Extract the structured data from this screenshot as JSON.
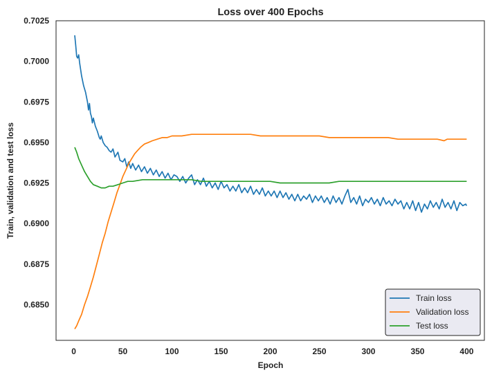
{
  "chart_data": {
    "type": "line",
    "title": "Loss over 400 Epochs",
    "xlabel": "Epoch",
    "ylabel": "Train, validation and test loss",
    "xlim": [
      -18,
      418
    ],
    "ylim": [
      0.6828,
      0.7025
    ],
    "xticks": [
      0,
      50,
      100,
      150,
      200,
      250,
      300,
      350,
      400
    ],
    "yticks": [
      "0.6850",
      "0.6875",
      "0.6900",
      "0.6925",
      "0.6950",
      "0.6975",
      "0.7000",
      "0.7025"
    ],
    "grid": false,
    "legend_position": "lower-right",
    "series": [
      {
        "name": "Train loss",
        "color": "#1f77b4",
        "points": [
          [
            1,
            0.7016
          ],
          [
            2,
            0.701
          ],
          [
            3,
            0.7003
          ],
          [
            4,
            0.7002
          ],
          [
            5,
            0.7004
          ],
          [
            6,
            0.6999
          ],
          [
            8,
            0.6991
          ],
          [
            10,
            0.6985
          ],
          [
            12,
            0.6981
          ],
          [
            14,
            0.6975
          ],
          [
            15,
            0.697
          ],
          [
            16,
            0.6974
          ],
          [
            17,
            0.6968
          ],
          [
            18,
            0.6966
          ],
          [
            19,
            0.6962
          ],
          [
            20,
            0.6965
          ],
          [
            22,
            0.696
          ],
          [
            24,
            0.6957
          ],
          [
            26,
            0.6953
          ],
          [
            27,
            0.6952
          ],
          [
            28,
            0.6954
          ],
          [
            30,
            0.695
          ],
          [
            32,
            0.6948
          ],
          [
            34,
            0.6947
          ],
          [
            36,
            0.6945
          ],
          [
            38,
            0.6944
          ],
          [
            40,
            0.6946
          ],
          [
            42,
            0.6941
          ],
          [
            45,
            0.6944
          ],
          [
            47,
            0.6939
          ],
          [
            50,
            0.6938
          ],
          [
            52,
            0.694
          ],
          [
            54,
            0.6935
          ],
          [
            56,
            0.6938
          ],
          [
            58,
            0.6934
          ],
          [
            60,
            0.6937
          ],
          [
            63,
            0.6933
          ],
          [
            66,
            0.6936
          ],
          [
            69,
            0.6932
          ],
          [
            72,
            0.6935
          ],
          [
            75,
            0.6931
          ],
          [
            78,
            0.6934
          ],
          [
            81,
            0.693
          ],
          [
            84,
            0.6933
          ],
          [
            87,
            0.6929
          ],
          [
            90,
            0.6932
          ],
          [
            93,
            0.6928
          ],
          [
            96,
            0.6931
          ],
          [
            99,
            0.6927
          ],
          [
            102,
            0.693
          ],
          [
            105,
            0.6929
          ],
          [
            108,
            0.6926
          ],
          [
            111,
            0.6929
          ],
          [
            114,
            0.6925
          ],
          [
            117,
            0.6928
          ],
          [
            120,
            0.693
          ],
          [
            123,
            0.6924
          ],
          [
            126,
            0.6927
          ],
          [
            129,
            0.6924
          ],
          [
            132,
            0.6928
          ],
          [
            135,
            0.6923
          ],
          [
            138,
            0.6926
          ],
          [
            141,
            0.6922
          ],
          [
            144,
            0.6925
          ],
          [
            147,
            0.6921
          ],
          [
            150,
            0.6926
          ],
          [
            153,
            0.6922
          ],
          [
            156,
            0.6924
          ],
          [
            159,
            0.692
          ],
          [
            162,
            0.6923
          ],
          [
            165,
            0.692
          ],
          [
            168,
            0.6924
          ],
          [
            171,
            0.6919
          ],
          [
            174,
            0.6922
          ],
          [
            177,
            0.6919
          ],
          [
            180,
            0.6923
          ],
          [
            183,
            0.6918
          ],
          [
            186,
            0.6921
          ],
          [
            189,
            0.6918
          ],
          [
            192,
            0.6922
          ],
          [
            195,
            0.6917
          ],
          [
            198,
            0.692
          ],
          [
            201,
            0.6917
          ],
          [
            204,
            0.692
          ],
          [
            207,
            0.6916
          ],
          [
            210,
            0.692
          ],
          [
            213,
            0.6916
          ],
          [
            216,
            0.6919
          ],
          [
            219,
            0.6915
          ],
          [
            222,
            0.6918
          ],
          [
            225,
            0.6914
          ],
          [
            228,
            0.6918
          ],
          [
            231,
            0.6914
          ],
          [
            234,
            0.6917
          ],
          [
            237,
            0.6915
          ],
          [
            240,
            0.6918
          ],
          [
            243,
            0.6913
          ],
          [
            246,
            0.6917
          ],
          [
            249,
            0.6914
          ],
          [
            252,
            0.6917
          ],
          [
            255,
            0.6913
          ],
          [
            258,
            0.6916
          ],
          [
            261,
            0.6912
          ],
          [
            264,
            0.6917
          ],
          [
            267,
            0.6913
          ],
          [
            270,
            0.6916
          ],
          [
            273,
            0.6912
          ],
          [
            276,
            0.6917
          ],
          [
            279,
            0.6921
          ],
          [
            282,
            0.6913
          ],
          [
            285,
            0.6916
          ],
          [
            288,
            0.6912
          ],
          [
            291,
            0.6917
          ],
          [
            294,
            0.6911
          ],
          [
            297,
            0.6915
          ],
          [
            300,
            0.6913
          ],
          [
            303,
            0.6916
          ],
          [
            306,
            0.6912
          ],
          [
            309,
            0.6915
          ],
          [
            312,
            0.6911
          ],
          [
            315,
            0.6916
          ],
          [
            318,
            0.6912
          ],
          [
            321,
            0.6914
          ],
          [
            324,
            0.6911
          ],
          [
            327,
            0.6915
          ],
          [
            330,
            0.6912
          ],
          [
            333,
            0.6914
          ],
          [
            336,
            0.6909
          ],
          [
            339,
            0.6913
          ],
          [
            342,
            0.6909
          ],
          [
            345,
            0.6914
          ],
          [
            348,
            0.6908
          ],
          [
            351,
            0.6913
          ],
          [
            354,
            0.6907
          ],
          [
            357,
            0.6912
          ],
          [
            360,
            0.6909
          ],
          [
            363,
            0.6914
          ],
          [
            366,
            0.691
          ],
          [
            369,
            0.6913
          ],
          [
            372,
            0.6909
          ],
          [
            375,
            0.6915
          ],
          [
            378,
            0.691
          ],
          [
            381,
            0.6913
          ],
          [
            384,
            0.6909
          ],
          [
            387,
            0.6914
          ],
          [
            390,
            0.6908
          ],
          [
            393,
            0.6913
          ],
          [
            396,
            0.6911
          ],
          [
            399,
            0.6912
          ],
          [
            400,
            0.6911
          ]
        ]
      },
      {
        "name": "Validation loss",
        "color": "#ff7f0e",
        "points": [
          [
            1,
            0.6835
          ],
          [
            3,
            0.6837
          ],
          [
            5,
            0.684
          ],
          [
            8,
            0.6844
          ],
          [
            11,
            0.685
          ],
          [
            14,
            0.6855
          ],
          [
            17,
            0.6861
          ],
          [
            20,
            0.6867
          ],
          [
            23,
            0.6874
          ],
          [
            26,
            0.6881
          ],
          [
            29,
            0.6888
          ],
          [
            32,
            0.6894
          ],
          [
            35,
            0.6901
          ],
          [
            38,
            0.6907
          ],
          [
            41,
            0.6913
          ],
          [
            44,
            0.6919
          ],
          [
            47,
            0.6924
          ],
          [
            50,
            0.6929
          ],
          [
            53,
            0.6933
          ],
          [
            56,
            0.6937
          ],
          [
            59,
            0.694
          ],
          [
            62,
            0.6943
          ],
          [
            65,
            0.6945
          ],
          [
            68,
            0.6947
          ],
          [
            72,
            0.6949
          ],
          [
            76,
            0.695
          ],
          [
            80,
            0.6951
          ],
          [
            85,
            0.6952
          ],
          [
            90,
            0.6953
          ],
          [
            95,
            0.6953
          ],
          [
            100,
            0.6954
          ],
          [
            110,
            0.6954
          ],
          [
            120,
            0.6955
          ],
          [
            130,
            0.6955
          ],
          [
            140,
            0.6955
          ],
          [
            150,
            0.6955
          ],
          [
            160,
            0.6955
          ],
          [
            170,
            0.6955
          ],
          [
            180,
            0.6955
          ],
          [
            190,
            0.6954
          ],
          [
            200,
            0.6954
          ],
          [
            210,
            0.6954
          ],
          [
            220,
            0.6954
          ],
          [
            230,
            0.6954
          ],
          [
            240,
            0.6954
          ],
          [
            250,
            0.6954
          ],
          [
            260,
            0.6953
          ],
          [
            270,
            0.6953
          ],
          [
            280,
            0.6953
          ],
          [
            290,
            0.6953
          ],
          [
            300,
            0.6953
          ],
          [
            310,
            0.6953
          ],
          [
            320,
            0.6953
          ],
          [
            330,
            0.6952
          ],
          [
            340,
            0.6952
          ],
          [
            350,
            0.6952
          ],
          [
            360,
            0.6952
          ],
          [
            370,
            0.6952
          ],
          [
            377,
            0.6951
          ],
          [
            380,
            0.6952
          ],
          [
            390,
            0.6952
          ],
          [
            400,
            0.6952
          ]
        ]
      },
      {
        "name": "Test loss",
        "color": "#2ca02c",
        "points": [
          [
            1,
            0.6947
          ],
          [
            3,
            0.6944
          ],
          [
            5,
            0.694
          ],
          [
            8,
            0.6936
          ],
          [
            11,
            0.6932
          ],
          [
            14,
            0.6929
          ],
          [
            17,
            0.6926
          ],
          [
            20,
            0.6924
          ],
          [
            24,
            0.6923
          ],
          [
            28,
            0.6922
          ],
          [
            32,
            0.6922
          ],
          [
            36,
            0.6923
          ],
          [
            40,
            0.6923
          ],
          [
            45,
            0.6924
          ],
          [
            50,
            0.6925
          ],
          [
            55,
            0.6926
          ],
          [
            60,
            0.6926
          ],
          [
            70,
            0.6927
          ],
          [
            80,
            0.6927
          ],
          [
            90,
            0.6927
          ],
          [
            100,
            0.6927
          ],
          [
            110,
            0.6927
          ],
          [
            120,
            0.6927
          ],
          [
            130,
            0.6926
          ],
          [
            140,
            0.6926
          ],
          [
            150,
            0.6926
          ],
          [
            160,
            0.6926
          ],
          [
            170,
            0.6926
          ],
          [
            180,
            0.6926
          ],
          [
            190,
            0.6926
          ],
          [
            200,
            0.6926
          ],
          [
            210,
            0.6925
          ],
          [
            220,
            0.6925
          ],
          [
            230,
            0.6925
          ],
          [
            240,
            0.6925
          ],
          [
            250,
            0.6925
          ],
          [
            260,
            0.6925
          ],
          [
            270,
            0.6926
          ],
          [
            280,
            0.6926
          ],
          [
            290,
            0.6926
          ],
          [
            300,
            0.6926
          ],
          [
            310,
            0.6926
          ],
          [
            320,
            0.6926
          ],
          [
            330,
            0.6926
          ],
          [
            340,
            0.6926
          ],
          [
            350,
            0.6926
          ],
          [
            360,
            0.6926
          ],
          [
            370,
            0.6926
          ],
          [
            380,
            0.6926
          ],
          [
            390,
            0.6926
          ],
          [
            400,
            0.6926
          ]
        ]
      }
    ]
  }
}
